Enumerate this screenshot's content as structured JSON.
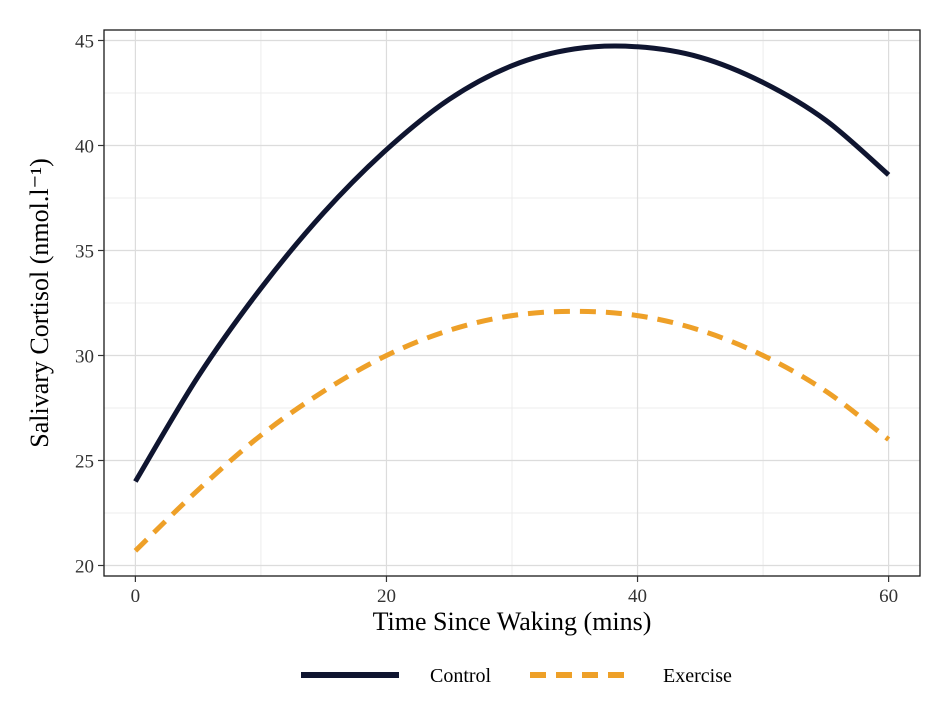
{
  "chart_data": {
    "type": "line",
    "title": "",
    "xlabel": "Time Since Waking (mins)",
    "ylabel": "Salivary Cortisol (nmol.l⁻¹)",
    "xlim": [
      -2.5,
      62.5
    ],
    "ylim": [
      19.5,
      45.5
    ],
    "xticks": [
      0,
      20,
      40,
      60
    ],
    "xtick_labels": [
      "0",
      "20",
      "40",
      "60"
    ],
    "yticks": [
      20,
      25,
      30,
      35,
      40,
      45
    ],
    "ytick_labels": [
      "20",
      "25",
      "30",
      "35",
      "40",
      "45"
    ],
    "grid": true,
    "legend_position": "bottom",
    "x": [
      0,
      5,
      10,
      15,
      20,
      25,
      30,
      35,
      40,
      45,
      50,
      55,
      60
    ],
    "series": [
      {
        "name": "Control",
        "color": "#0f1530",
        "dash": "solid",
        "values": [
          24.0,
          29.0,
          33.2,
          36.8,
          39.8,
          42.2,
          43.8,
          44.6,
          44.7,
          44.2,
          43.0,
          41.2,
          38.6
        ]
      },
      {
        "name": "Exercise",
        "color": "#eea028",
        "dash": "dashed",
        "values": [
          20.7,
          23.6,
          26.2,
          28.3,
          30.0,
          31.2,
          31.9,
          32.1,
          31.9,
          31.2,
          30.0,
          28.3,
          26.0
        ]
      }
    ]
  }
}
